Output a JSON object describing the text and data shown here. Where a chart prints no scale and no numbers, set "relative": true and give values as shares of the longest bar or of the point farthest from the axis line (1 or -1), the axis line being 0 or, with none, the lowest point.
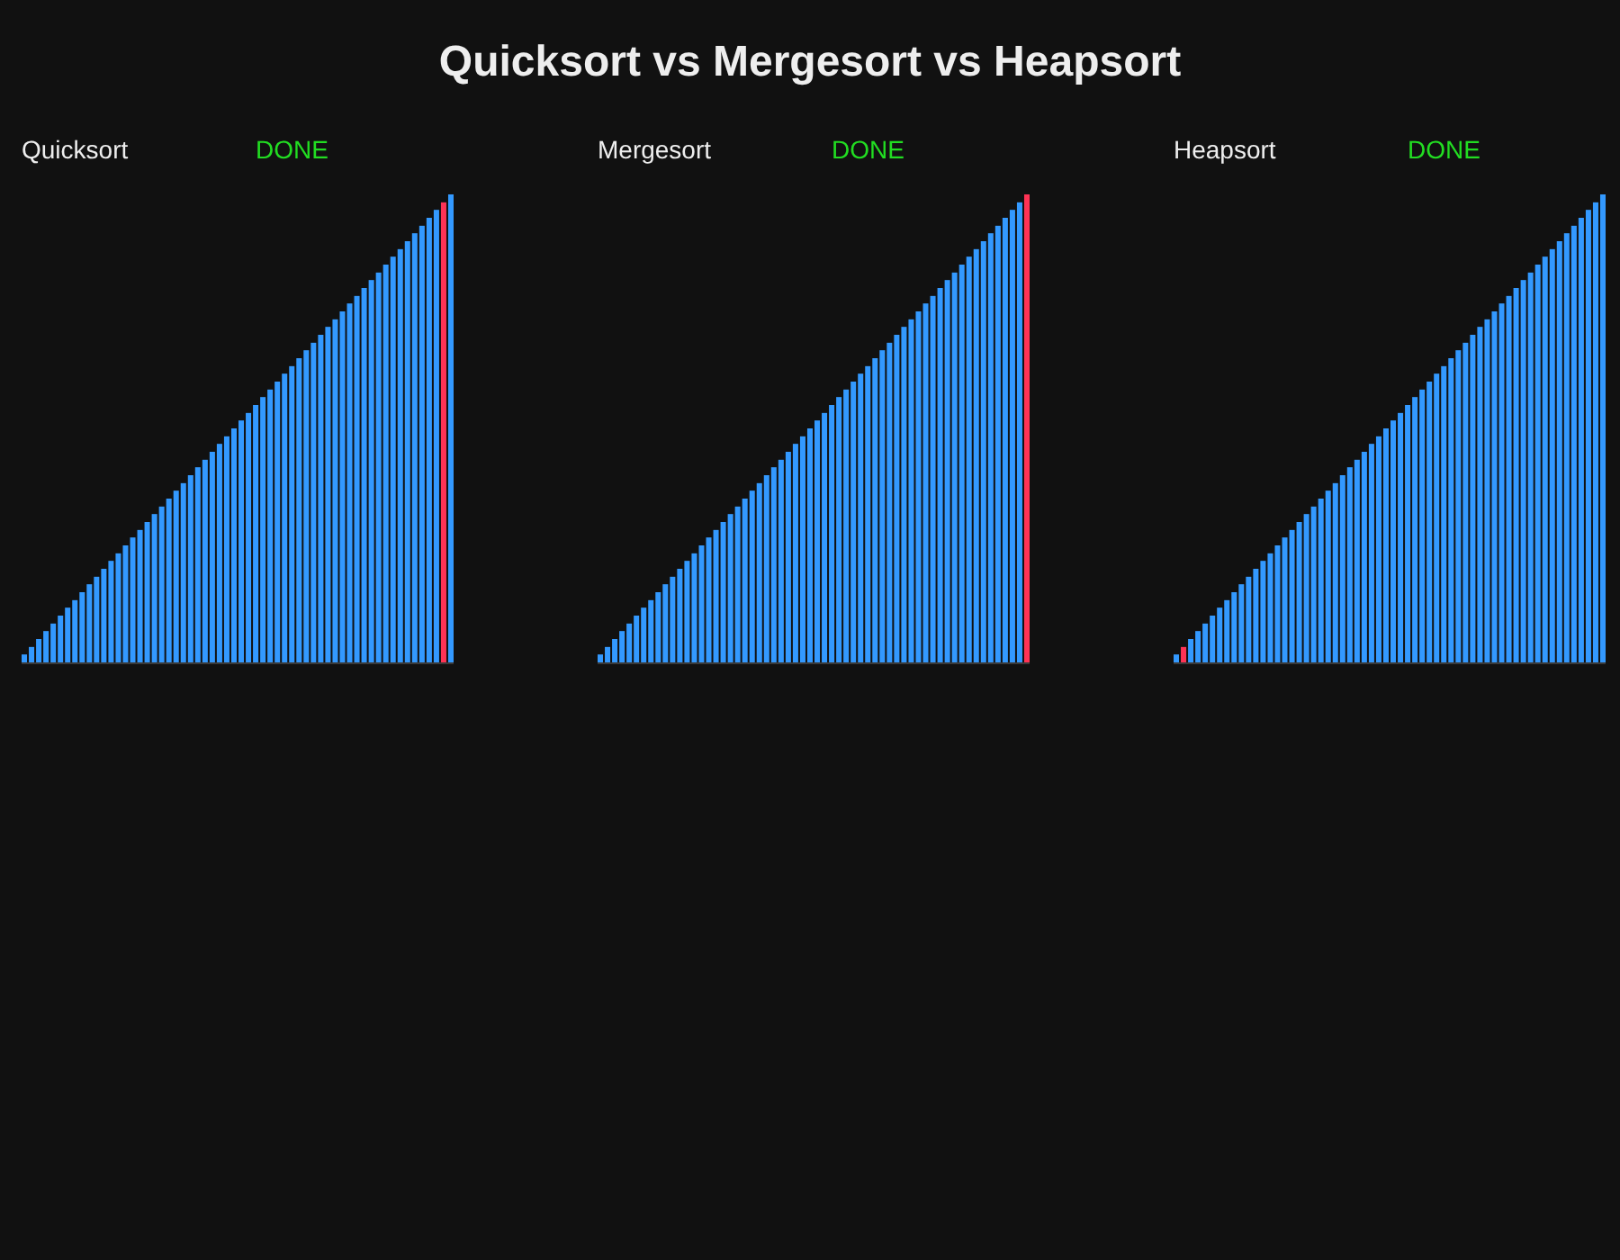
{
  "chart_data": [
    {
      "type": "other",
      "title": "Quicksort vs Mergesort vs Heapsort"
    },
    {
      "type": "bar",
      "title": "Quicksort",
      "annotations": [
        "DONE"
      ],
      "relative": true,
      "categories": [
        null,
        null,
        null,
        null,
        null,
        null,
        null,
        null,
        null,
        null,
        null,
        null,
        null,
        null,
        null,
        null,
        null,
        null,
        null,
        null,
        null,
        null,
        null,
        null,
        null,
        null,
        null,
        null,
        null,
        null,
        null,
        null,
        null,
        null,
        null,
        null,
        null,
        null,
        null,
        null,
        null,
        null,
        null,
        null,
        null,
        null,
        null,
        null,
        null,
        null,
        null,
        null,
        null,
        null,
        null,
        null,
        null,
        null,
        null,
        null
      ],
      "values": [
        0.017,
        0.033,
        0.05,
        0.067,
        0.083,
        0.1,
        0.117,
        0.133,
        0.15,
        0.167,
        0.183,
        0.2,
        0.217,
        0.233,
        0.25,
        0.267,
        0.283,
        0.3,
        0.317,
        0.333,
        0.35,
        0.367,
        0.383,
        0.4,
        0.417,
        0.433,
        0.45,
        0.467,
        0.483,
        0.5,
        0.517,
        0.533,
        0.55,
        0.567,
        0.583,
        0.6,
        0.617,
        0.633,
        0.65,
        0.667,
        0.683,
        0.7,
        0.717,
        0.733,
        0.75,
        0.767,
        0.783,
        0.8,
        0.817,
        0.833,
        0.85,
        0.867,
        0.883,
        0.9,
        0.917,
        0.933,
        0.95,
        0.967,
        0.983,
        1
      ],
      "colors": [
        "#3399ff",
        "#3399ff",
        "#3399ff",
        "#3399ff",
        "#3399ff",
        "#3399ff",
        "#3399ff",
        "#3399ff",
        "#3399ff",
        "#3399ff",
        "#3399ff",
        "#3399ff",
        "#3399ff",
        "#3399ff",
        "#3399ff",
        "#3399ff",
        "#3399ff",
        "#3399ff",
        "#3399ff",
        "#3399ff",
        "#3399ff",
        "#3399ff",
        "#3399ff",
        "#3399ff",
        "#3399ff",
        "#3399ff",
        "#3399ff",
        "#3399ff",
        "#3399ff",
        "#3399ff",
        "#3399ff",
        "#3399ff",
        "#3399ff",
        "#3399ff",
        "#3399ff",
        "#3399ff",
        "#3399ff",
        "#3399ff",
        "#3399ff",
        "#3399ff",
        "#3399ff",
        "#3399ff",
        "#3399ff",
        "#3399ff",
        "#3399ff",
        "#3399ff",
        "#3399ff",
        "#3399ff",
        "#3399ff",
        "#3399ff",
        "#3399ff",
        "#3399ff",
        "#3399ff",
        "#3399ff",
        "#3399ff",
        "#3399ff",
        "#3399ff",
        "#3399ff",
        "#ff3355",
        "#3399ff"
      ]
    },
    {
      "type": "bar",
      "title": "Mergesort",
      "annotations": [
        "DONE"
      ],
      "relative": true,
      "categories": [
        null,
        null,
        null,
        null,
        null,
        null,
        null,
        null,
        null,
        null,
        null,
        null,
        null,
        null,
        null,
        null,
        null,
        null,
        null,
        null,
        null,
        null,
        null,
        null,
        null,
        null,
        null,
        null,
        null,
        null,
        null,
        null,
        null,
        null,
        null,
        null,
        null,
        null,
        null,
        null,
        null,
        null,
        null,
        null,
        null,
        null,
        null,
        null,
        null,
        null,
        null,
        null,
        null,
        null,
        null,
        null,
        null,
        null,
        null,
        null
      ],
      "values": [
        0.017,
        0.033,
        0.05,
        0.067,
        0.083,
        0.1,
        0.117,
        0.133,
        0.15,
        0.167,
        0.183,
        0.2,
        0.217,
        0.233,
        0.25,
        0.267,
        0.283,
        0.3,
        0.317,
        0.333,
        0.35,
        0.367,
        0.383,
        0.4,
        0.417,
        0.433,
        0.45,
        0.467,
        0.483,
        0.5,
        0.517,
        0.533,
        0.55,
        0.567,
        0.583,
        0.6,
        0.617,
        0.633,
        0.65,
        0.667,
        0.683,
        0.7,
        0.717,
        0.733,
        0.75,
        0.767,
        0.783,
        0.8,
        0.817,
        0.833,
        0.85,
        0.867,
        0.883,
        0.9,
        0.917,
        0.933,
        0.95,
        0.967,
        0.983,
        1
      ],
      "colors": [
        "#3399ff",
        "#3399ff",
        "#3399ff",
        "#3399ff",
        "#3399ff",
        "#3399ff",
        "#3399ff",
        "#3399ff",
        "#3399ff",
        "#3399ff",
        "#3399ff",
        "#3399ff",
        "#3399ff",
        "#3399ff",
        "#3399ff",
        "#3399ff",
        "#3399ff",
        "#3399ff",
        "#3399ff",
        "#3399ff",
        "#3399ff",
        "#3399ff",
        "#3399ff",
        "#3399ff",
        "#3399ff",
        "#3399ff",
        "#3399ff",
        "#3399ff",
        "#3399ff",
        "#3399ff",
        "#3399ff",
        "#3399ff",
        "#3399ff",
        "#3399ff",
        "#3399ff",
        "#3399ff",
        "#3399ff",
        "#3399ff",
        "#3399ff",
        "#3399ff",
        "#3399ff",
        "#3399ff",
        "#3399ff",
        "#3399ff",
        "#3399ff",
        "#3399ff",
        "#3399ff",
        "#3399ff",
        "#3399ff",
        "#3399ff",
        "#3399ff",
        "#3399ff",
        "#3399ff",
        "#3399ff",
        "#3399ff",
        "#3399ff",
        "#3399ff",
        "#3399ff",
        "#3399ff",
        "#ff3355"
      ]
    },
    {
      "type": "bar",
      "title": "Heapsort",
      "annotations": [
        "DONE"
      ],
      "relative": true,
      "categories": [
        null,
        null,
        null,
        null,
        null,
        null,
        null,
        null,
        null,
        null,
        null,
        null,
        null,
        null,
        null,
        null,
        null,
        null,
        null,
        null,
        null,
        null,
        null,
        null,
        null,
        null,
        null,
        null,
        null,
        null,
        null,
        null,
        null,
        null,
        null,
        null,
        null,
        null,
        null,
        null,
        null,
        null,
        null,
        null,
        null,
        null,
        null,
        null,
        null,
        null,
        null,
        null,
        null,
        null,
        null,
        null,
        null,
        null,
        null,
        null
      ],
      "values": [
        0.017,
        0.033,
        0.05,
        0.067,
        0.083,
        0.1,
        0.117,
        0.133,
        0.15,
        0.167,
        0.183,
        0.2,
        0.217,
        0.233,
        0.25,
        0.267,
        0.283,
        0.3,
        0.317,
        0.333,
        0.35,
        0.367,
        0.383,
        0.4,
        0.417,
        0.433,
        0.45,
        0.467,
        0.483,
        0.5,
        0.517,
        0.533,
        0.55,
        0.567,
        0.583,
        0.6,
        0.617,
        0.633,
        0.65,
        0.667,
        0.683,
        0.7,
        0.717,
        0.733,
        0.75,
        0.767,
        0.783,
        0.8,
        0.817,
        0.833,
        0.85,
        0.867,
        0.883,
        0.9,
        0.917,
        0.933,
        0.95,
        0.967,
        0.983,
        1
      ],
      "colors": [
        "#3399ff",
        "#ff3355",
        "#3399ff",
        "#3399ff",
        "#3399ff",
        "#3399ff",
        "#3399ff",
        "#3399ff",
        "#3399ff",
        "#3399ff",
        "#3399ff",
        "#3399ff",
        "#3399ff",
        "#3399ff",
        "#3399ff",
        "#3399ff",
        "#3399ff",
        "#3399ff",
        "#3399ff",
        "#3399ff",
        "#3399ff",
        "#3399ff",
        "#3399ff",
        "#3399ff",
        "#3399ff",
        "#3399ff",
        "#3399ff",
        "#3399ff",
        "#3399ff",
        "#3399ff",
        "#3399ff",
        "#3399ff",
        "#3399ff",
        "#3399ff",
        "#3399ff",
        "#3399ff",
        "#3399ff",
        "#3399ff",
        "#3399ff",
        "#3399ff",
        "#3399ff",
        "#3399ff",
        "#3399ff",
        "#3399ff",
        "#3399ff",
        "#3399ff",
        "#3399ff",
        "#3399ff",
        "#3399ff",
        "#3399ff",
        "#3399ff",
        "#3399ff",
        "#3399ff",
        "#3399ff",
        "#3399ff",
        "#3399ff",
        "#3399ff",
        "#3399ff",
        "#3399ff",
        "#3399ff"
      ]
    }
  ]
}
